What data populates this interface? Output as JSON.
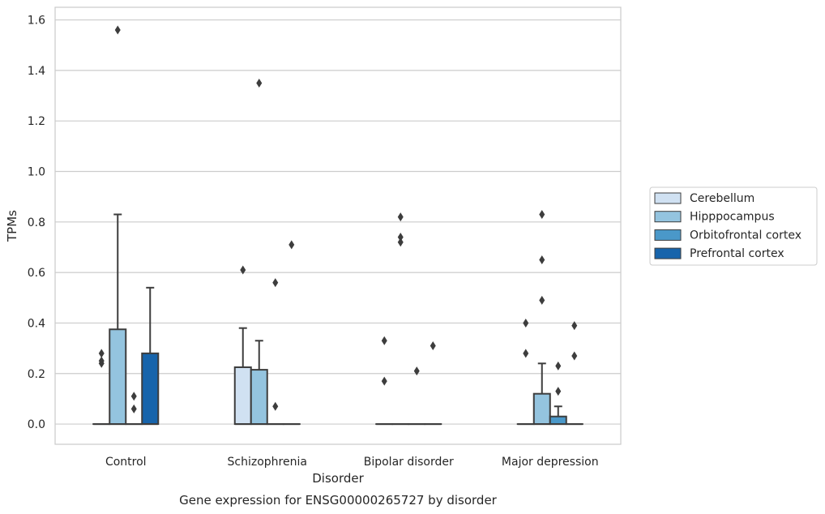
{
  "chart_data": {
    "type": "boxplot",
    "title": "Gene expression for ENSG00000265727 by disorder",
    "xlabel": "Disorder",
    "ylabel": "TPMs",
    "categories": [
      "Control",
      "Schizophrenia",
      "Bipolar disorder",
      "Major depression"
    ],
    "ylim": [
      -0.08,
      1.65
    ],
    "yticks": [
      "0.0",
      "0.2",
      "0.4",
      "0.6",
      "0.8",
      "1.0",
      "1.2",
      "1.4",
      "1.6"
    ],
    "grid": true,
    "legend_position": "right",
    "series": [
      {
        "name": "Cerebellum",
        "color": "#d0e1f2",
        "boxes": [
          {
            "q1": 0,
            "median": 0,
            "q3": 0,
            "whisker_low": 0,
            "whisker_high": 0,
            "outliers": [
              0.24,
              0.25,
              0.28
            ]
          },
          {
            "q1": 0,
            "median": 0,
            "q3": 0.225,
            "whisker_low": 0,
            "whisker_high": 0.38,
            "outliers": [
              0.61
            ]
          },
          {
            "q1": 0,
            "median": 0,
            "q3": 0,
            "whisker_low": 0,
            "whisker_high": 0,
            "outliers": [
              0.17,
              0.33
            ]
          },
          {
            "q1": 0,
            "median": 0,
            "q3": 0,
            "whisker_low": 0,
            "whisker_high": 0,
            "outliers": [
              0.28,
              0.4
            ]
          }
        ]
      },
      {
        "name": "Hipppocampus",
        "color": "#94c4df",
        "boxes": [
          {
            "q1": 0,
            "median": 0,
            "q3": 0.375,
            "whisker_low": 0,
            "whisker_high": 0.83,
            "outliers": [
              1.56
            ]
          },
          {
            "q1": 0,
            "median": 0,
            "q3": 0.215,
            "whisker_low": 0,
            "whisker_high": 0.33,
            "outliers": [
              1.35
            ]
          },
          {
            "q1": 0,
            "median": 0,
            "q3": 0,
            "whisker_low": 0,
            "whisker_high": 0,
            "outliers": [
              0.72,
              0.74,
              0.82
            ]
          },
          {
            "q1": 0,
            "median": 0,
            "q3": 0.12,
            "whisker_low": 0,
            "whisker_high": 0.24,
            "outliers": [
              0.49,
              0.65,
              0.83
            ]
          }
        ]
      },
      {
        "name": "Orbitofrontal cortex",
        "color": "#4a98c9",
        "boxes": [
          {
            "q1": 0,
            "median": 0,
            "q3": 0,
            "whisker_low": 0,
            "whisker_high": 0,
            "outliers": [
              0.06,
              0.11
            ]
          },
          {
            "q1": 0,
            "median": 0,
            "q3": 0,
            "whisker_low": 0,
            "whisker_high": 0,
            "outliers": [
              0.07,
              0.56
            ]
          },
          {
            "q1": 0,
            "median": 0,
            "q3": 0,
            "whisker_low": 0,
            "whisker_high": 0,
            "outliers": [
              0.21
            ]
          },
          {
            "q1": 0,
            "median": 0,
            "q3": 0.03,
            "whisker_low": 0,
            "whisker_high": 0.07,
            "outliers": [
              0.13,
              0.23
            ]
          }
        ]
      },
      {
        "name": "Prefrontal cortex",
        "color": "#1764ab",
        "boxes": [
          {
            "q1": 0,
            "median": 0,
            "q3": 0.28,
            "whisker_low": 0,
            "whisker_high": 0.54,
            "outliers": []
          },
          {
            "q1": 0,
            "median": 0,
            "q3": 0,
            "whisker_low": 0,
            "whisker_high": 0,
            "outliers": [
              0.71
            ]
          },
          {
            "q1": 0,
            "median": 0,
            "q3": 0,
            "whisker_low": 0,
            "whisker_high": 0,
            "outliers": [
              0.31
            ]
          },
          {
            "q1": 0,
            "median": 0,
            "q3": 0,
            "whisker_low": 0,
            "whisker_high": 0,
            "outliers": [
              0.27,
              0.39
            ]
          }
        ]
      }
    ]
  }
}
